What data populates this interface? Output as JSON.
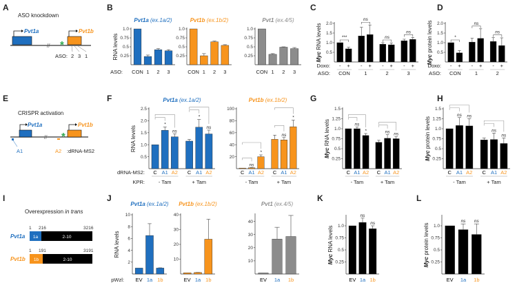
{
  "panels": {
    "A": "A",
    "B": "B",
    "C": "C",
    "D": "D",
    "E": "E",
    "F": "F",
    "G": "G",
    "H": "H",
    "I": "I",
    "J": "J",
    "K": "K",
    "L": "L"
  },
  "colors": {
    "blue": "#1f6fbf",
    "orange": "#f7941d",
    "gray": "#8c8c8c",
    "black": "#000000",
    "green": "#2fa84f"
  },
  "diagram_a": {
    "title": "ASO knockdown",
    "gene1": "Pvt1a",
    "gene2": "Pvt1b",
    "break": "//",
    "star": "*",
    "aso_label": "ASO:",
    "aso_numbers": [
      "2",
      "3",
      "1"
    ]
  },
  "diagram_e": {
    "title": "CRISPR activation",
    "gene1": "Pvt1a",
    "gene2": "Pvt1b",
    "break": "//",
    "star": "*",
    "a1": "A1",
    "a2": "A2",
    "drna": ":dRNA-MS2"
  },
  "diagram_i": {
    "title_prefix": "Overexpression ",
    "title_italic": "in trans",
    "pvt1a": {
      "name": "Pvt1a",
      "start": "1",
      "junction": "216",
      "end": "3216",
      "exon1": "1a",
      "rest": "2-10"
    },
    "pvt1b": {
      "name": "Pvt1b",
      "start": "1",
      "junction": "191",
      "end": "3191",
      "exon1": "1b",
      "rest": "2-10"
    }
  },
  "chart_data": [
    {
      "id": "B1",
      "panel": "B",
      "type": "bar",
      "title_gene": "Pvt1a",
      "title_exon": " (ex.1a/2)",
      "title_color": "blue",
      "ylabel": "RNA levels",
      "row_label": "ASO:",
      "ylim": [
        0,
        1
      ],
      "yticks": [
        0.25,
        0.5,
        0.75,
        1.0
      ],
      "ytick_labels": [
        "0.25",
        "0.5",
        "0.75",
        "1.0"
      ],
      "categories": [
        "CON",
        "1",
        "2",
        "3"
      ],
      "values": [
        1.0,
        0.23,
        0.42,
        0.39
      ],
      "errors": [
        0,
        0.04,
        0.03,
        0.03
      ],
      "bar_color": "blue"
    },
    {
      "id": "B2",
      "panel": "B",
      "type": "bar",
      "title_gene": "Pvt1b",
      "title_exon": " (ex.1b/2)",
      "title_color": "orange",
      "ylim": [
        0,
        1
      ],
      "yticks": [
        0.25,
        0.5,
        0.75,
        1.0
      ],
      "ytick_labels": [
        "0.25",
        "0.5",
        "0.75",
        "1.0"
      ],
      "categories": [
        "CON",
        "1",
        "2",
        "3"
      ],
      "values": [
        1.0,
        0.25,
        0.64,
        0.54
      ],
      "errors": [
        0,
        0.06,
        0.02,
        0.02
      ],
      "bar_color": "orange"
    },
    {
      "id": "B3",
      "panel": "B",
      "type": "bar",
      "title_gene": "Pvt1",
      "title_exon": " (ex.4/5)",
      "title_color": "gray",
      "ylim": [
        0,
        1
      ],
      "yticks": [
        0.25,
        0.5,
        0.75,
        1.0
      ],
      "ytick_labels": [
        "0.25",
        "0.5",
        "0.75",
        "1.0"
      ],
      "categories": [
        "CON",
        "1",
        "2",
        "3"
      ],
      "values": [
        1.0,
        0.29,
        0.49,
        0.45
      ],
      "errors": [
        0,
        0.02,
        0.01,
        0.03
      ],
      "bar_color": "gray"
    },
    {
      "id": "C",
      "panel": "C",
      "type": "bar",
      "ylabel_italic": "Myc",
      "ylabel": " RNA levels",
      "sub_row_label": "Doxo:",
      "row_label": "ASO:",
      "ylim": [
        0,
        2
      ],
      "yticks": [
        0.5,
        1.0,
        1.5,
        2.0
      ],
      "ytick_labels": [
        "0.5",
        "1.0",
        "1.5",
        "2.0"
      ],
      "sub_categories": [
        "-",
        "+",
        "-",
        "+",
        "-",
        "+",
        "-",
        "+"
      ],
      "groups": [
        {
          "label": "CON",
          "from": 0,
          "to": 1
        },
        {
          "label": "1",
          "from": 2,
          "to": 3
        },
        {
          "label": "2",
          "from": 4,
          "to": 5
        },
        {
          "label": "3",
          "from": 6,
          "to": 7
        }
      ],
      "values": [
        1.0,
        0.68,
        1.35,
        1.42,
        0.92,
        0.89,
        1.1,
        1.17
      ],
      "errors": [
        0,
        0.08,
        0.45,
        0.5,
        0.08,
        0.1,
        0.08,
        0.1
      ],
      "bar_color": "black",
      "pair_brackets": [
        {
          "from": 0,
          "to": 1,
          "label": "***"
        },
        {
          "from": 2,
          "to": 3,
          "label": "ns"
        },
        {
          "from": 4,
          "to": 5,
          "label": "ns"
        },
        {
          "from": 6,
          "to": 7,
          "label": "ns"
        }
      ]
    },
    {
      "id": "D",
      "panel": "D",
      "type": "bar",
      "ylabel_italic": "Myc",
      "ylabel": " protein levels",
      "sub_row_label": "Doxo:",
      "row_label": "ASO:",
      "ylim": [
        0,
        2
      ],
      "yticks": [
        0.5,
        1.0,
        1.5,
        2.0
      ],
      "ytick_labels": [
        "0.5",
        "1.0",
        "1.5",
        "2.0"
      ],
      "sub_categories": [
        "-",
        "+",
        "-",
        "+",
        "-",
        "+"
      ],
      "groups": [
        {
          "label": "CON",
          "from": 0,
          "to": 1
        },
        {
          "label": "1",
          "from": 2,
          "to": 3
        },
        {
          "label": "2",
          "from": 4,
          "to": 5
        }
      ],
      "values": [
        1.0,
        0.47,
        1.03,
        1.22,
        1.06,
        0.85
      ],
      "errors": [
        0,
        0.12,
        0.2,
        0.5,
        0.2,
        0.4
      ],
      "bar_color": "black",
      "pair_brackets": [
        {
          "from": 0,
          "to": 1,
          "label": "*"
        },
        {
          "from": 2,
          "to": 3,
          "label": "ns"
        },
        {
          "from": 4,
          "to": 5,
          "label": "ns"
        }
      ]
    },
    {
      "id": "F1",
      "panel": "F",
      "type": "bar",
      "title_gene": "Pvt1a",
      "title_exon": " (ex.1a/2)",
      "title_color": "blue",
      "ylabel": "RNA levels",
      "sub_row_label": "dRNA-MS2:",
      "row_label": "KPR:",
      "ylim": [
        0,
        2.5
      ],
      "yticks": [
        0.5,
        1.0,
        1.5,
        2.0,
        2.5
      ],
      "ytick_labels": [
        "0.5",
        "1.0",
        "1.5",
        "2.0",
        "2.5"
      ],
      "sub_categories": [
        "C",
        "A1",
        "A2",
        "C",
        "A1",
        "A2"
      ],
      "sub_colors": [
        "black",
        "blue",
        "orange",
        "black",
        "blue",
        "orange"
      ],
      "groups": [
        {
          "label": "- Tam",
          "from": 0,
          "to": 2
        },
        {
          "label": "+ Tam",
          "from": 3,
          "to": 5
        }
      ],
      "values": [
        1.0,
        1.6,
        1.33,
        1.15,
        1.73,
        1.45
      ],
      "errors": [
        0,
        0.14,
        0.12,
        0.07,
        0.32,
        0.16
      ],
      "bar_color": "blue",
      "sig": [
        "",
        "*",
        "ns",
        "",
        "*",
        "ns"
      ],
      "top_brackets": [
        [
          0,
          1
        ],
        [
          0,
          2
        ],
        [
          3,
          4
        ],
        [
          3,
          5
        ]
      ]
    },
    {
      "id": "F2",
      "panel": "F",
      "type": "bar",
      "title_gene": "Pvt1b",
      "title_exon": " (ex.1b/2)",
      "title_color": "orange",
      "ylim": [
        0,
        100
      ],
      "yticks": [
        20,
        40,
        60,
        80,
        100
      ],
      "ytick_labels": [
        "20",
        "40",
        "60",
        "80",
        "100"
      ],
      "sub_categories": [
        "C",
        "A1",
        "A2",
        "C",
        "A1",
        "A2"
      ],
      "sub_colors": [
        "black",
        "blue",
        "orange",
        "black",
        "blue",
        "orange"
      ],
      "groups": [
        {
          "label": "- Tam",
          "from": 0,
          "to": 2
        },
        {
          "label": "+ Tam",
          "from": 3,
          "to": 5
        }
      ],
      "values": [
        1.0,
        1.5,
        20,
        49,
        48,
        70
      ],
      "errors": [
        0,
        0.3,
        3,
        7,
        4,
        11
      ],
      "bar_color": "orange",
      "sig": [
        "",
        "ns",
        "*",
        "",
        "ns",
        "*"
      ],
      "top_brackets": [
        [
          0,
          1
        ],
        [
          0,
          2
        ],
        [
          3,
          4
        ],
        [
          3,
          5
        ]
      ]
    },
    {
      "id": "G",
      "panel": "G",
      "type": "bar",
      "ylabel_italic": "Myc",
      "ylabel": " RNA levels",
      "ylim": [
        0,
        1.5
      ],
      "yticks": [
        0.25,
        0.5,
        0.75,
        1.0,
        1.25,
        1.5
      ],
      "ytick_labels": [
        "0.25",
        "0.5",
        "0.75",
        "1.0",
        "1.25",
        "1.5"
      ],
      "sub_categories": [
        "C",
        "A1",
        "A2",
        "C",
        "A1",
        "A2"
      ],
      "sub_colors": [
        "black",
        "blue",
        "orange",
        "black",
        "blue",
        "orange"
      ],
      "groups": [
        {
          "label": "- Tam",
          "from": 0,
          "to": 2
        },
        {
          "label": "+ Tam",
          "from": 3,
          "to": 5
        }
      ],
      "values": [
        1.0,
        1.0,
        0.83,
        0.66,
        0.76,
        0.75
      ],
      "errors": [
        0,
        0.04,
        0.05,
        0.05,
        0.09,
        0.05
      ],
      "bar_color": "black",
      "sig": [
        "",
        "ns",
        "*",
        "",
        "ns",
        "ns"
      ],
      "top_brackets": [
        [
          0,
          1
        ],
        [
          0,
          2
        ],
        [
          3,
          4
        ],
        [
          3,
          5
        ]
      ]
    },
    {
      "id": "H",
      "panel": "H",
      "type": "bar",
      "ylabel_italic": "Myc",
      "ylabel": " protein levels",
      "ylim": [
        0,
        1.5
      ],
      "yticks": [
        0.25,
        0.5,
        0.75,
        1.0,
        1.25,
        1.5
      ],
      "ytick_labels": [
        "0.25",
        "0.5",
        "0.75",
        "1.0",
        "1.25",
        "1.5"
      ],
      "sub_categories": [
        "C",
        "A1",
        "A2",
        "C",
        "A1",
        "A2"
      ],
      "sub_colors": [
        "black",
        "blue",
        "orange",
        "black",
        "blue",
        "orange"
      ],
      "groups": [
        {
          "label": "- Tam",
          "from": 0,
          "to": 2
        },
        {
          "label": "+ Tam",
          "from": 3,
          "to": 5
        }
      ],
      "values": [
        1.0,
        1.08,
        1.07,
        0.72,
        0.73,
        0.63
      ],
      "errors": [
        0,
        0.2,
        0.18,
        0.05,
        0.16,
        0.14
      ],
      "bar_color": "black",
      "sig": [
        "",
        "ns",
        "ns",
        "",
        "ns",
        "ns"
      ],
      "top_brackets": [
        [
          0,
          1
        ],
        [
          0,
          2
        ],
        [
          3,
          4
        ],
        [
          3,
          5
        ]
      ]
    },
    {
      "id": "J1",
      "panel": "J",
      "type": "bar",
      "title_gene": "Pvt1a",
      "title_exon": " (ex.1a/2)",
      "title_color": "blue",
      "ylabel": "RNA levels",
      "row_label": "pWzl:",
      "ylim": [
        0,
        10
      ],
      "yticks": [
        2,
        4,
        6,
        8,
        10
      ],
      "ytick_labels": [
        "2",
        "4",
        "6",
        "8",
        "10"
      ],
      "categories": [
        "EV",
        "1a",
        "1b"
      ],
      "cat_colors": [
        "black",
        "blue",
        "orange"
      ],
      "values": [
        1.0,
        6.5,
        1.0
      ],
      "errors": [
        0,
        2.0,
        0.05
      ],
      "bar_color": "blue"
    },
    {
      "id": "J2",
      "panel": "J",
      "type": "bar",
      "title_gene": "Pvt1b",
      "title_exon": " (ex.1b/2)",
      "title_color": "orange",
      "ylim": [
        0,
        40
      ],
      "yticks": [
        10,
        20,
        30,
        40
      ],
      "ytick_labels": [
        "10",
        "20",
        "30",
        "40"
      ],
      "categories": [
        "EV",
        "1a",
        "1b"
      ],
      "cat_colors": [
        "black",
        "blue",
        "orange"
      ],
      "values": [
        0.8,
        1.0,
        23.5
      ],
      "errors": [
        0,
        0.1,
        13.5
      ],
      "bar_color": "orange"
    },
    {
      "id": "J3",
      "panel": "J",
      "type": "bar",
      "title_gene": "Pvt1",
      "title_exon": " (ex.4/5)",
      "title_color": "gray",
      "ylim": [
        0,
        45
      ],
      "yticks": [
        10,
        20,
        30,
        40
      ],
      "ytick_labels": [
        "10",
        "20",
        "30",
        "40"
      ],
      "categories": [
        "EV",
        "1a",
        "1b"
      ],
      "cat_colors": [
        "black",
        "blue",
        "orange"
      ],
      "values": [
        0.8,
        26.5,
        28.5
      ],
      "errors": [
        0,
        9,
        16
      ],
      "bar_color": "gray"
    },
    {
      "id": "K",
      "panel": "K",
      "type": "bar",
      "ylabel_italic": "Myc",
      "ylabel": " RNA levels",
      "ylim": [
        0,
        1.2
      ],
      "yticks": [
        0.25,
        0.5,
        0.75,
        1.0
      ],
      "ytick_labels": [
        "0.25",
        "0.5",
        "0.75",
        "1.0"
      ],
      "categories": [
        "EV",
        "1a",
        "1b"
      ],
      "cat_colors": [
        "black",
        "blue",
        "orange"
      ],
      "values": [
        1.0,
        1.07,
        0.94
      ],
      "errors": [
        0,
        0.09,
        0.06
      ],
      "bar_color": "black",
      "sig": [
        "",
        "ns",
        "ns"
      ]
    },
    {
      "id": "L",
      "panel": "L",
      "type": "bar",
      "ylabel_italic": "Myc",
      "ylabel": " protein levels",
      "ylim": [
        0,
        1.2
      ],
      "yticks": [
        0.25,
        0.5,
        0.75,
        1.0
      ],
      "ytick_labels": [
        "0.25",
        "0.5",
        "0.75",
        "1.0"
      ],
      "categories": [
        "EV",
        "1a",
        "1b"
      ],
      "cat_colors": [
        "black",
        "blue",
        "orange"
      ],
      "values": [
        1.0,
        0.92,
        0.82
      ],
      "errors": [
        0,
        0.12,
        0.22
      ],
      "bar_color": "black",
      "sig": [
        "",
        "ns",
        "ns"
      ]
    }
  ]
}
